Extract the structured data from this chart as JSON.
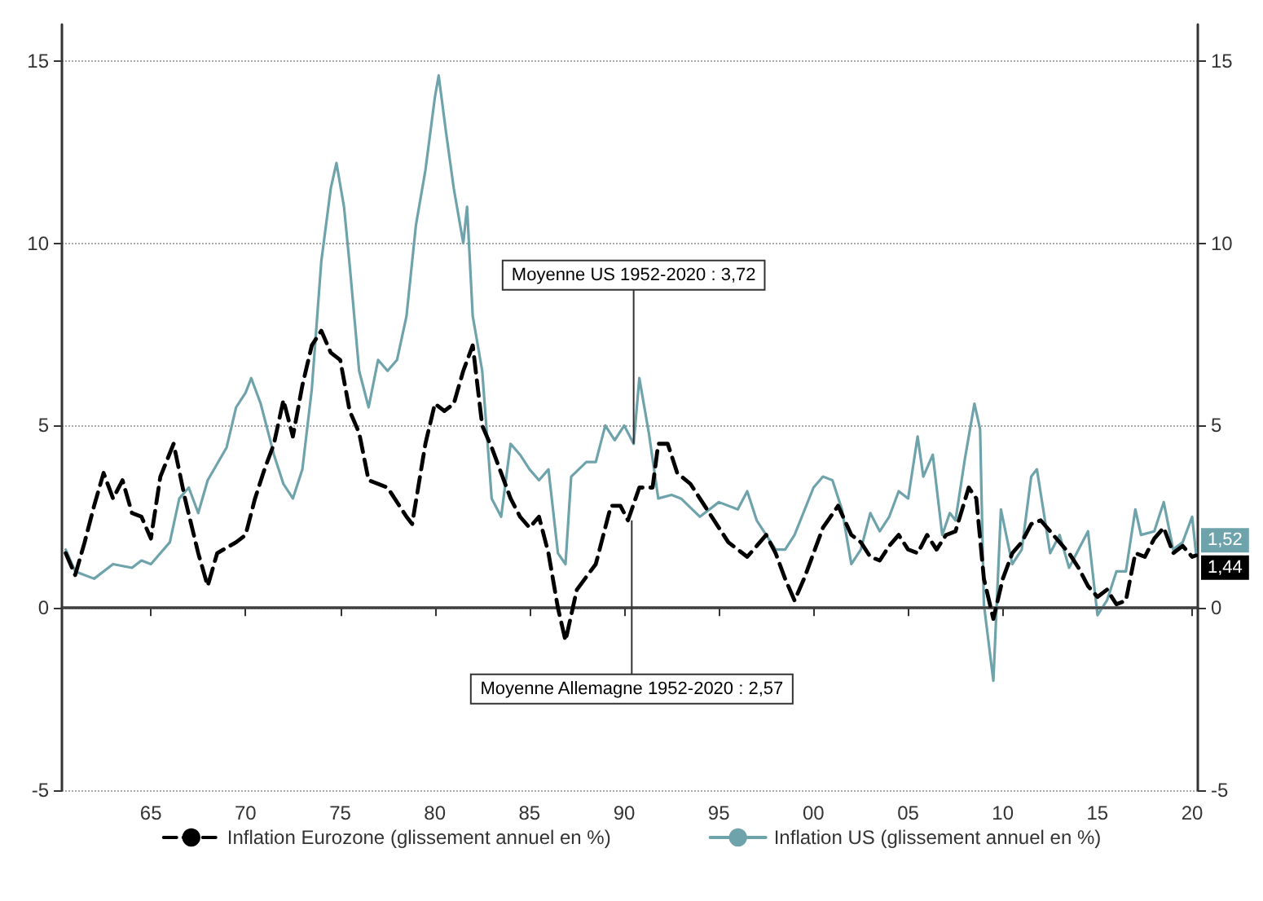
{
  "chart_data": {
    "type": "line",
    "xlim": [
      1960.3,
      2020.3
    ],
    "xticks": [
      {
        "value": 1965,
        "label": "65"
      },
      {
        "value": 1970,
        "label": "70"
      },
      {
        "value": 1975,
        "label": "75"
      },
      {
        "value": 1980,
        "label": "80"
      },
      {
        "value": 1985,
        "label": "85"
      },
      {
        "value": 1990,
        "label": "90"
      },
      {
        "value": 1995,
        "label": "95"
      },
      {
        "value": 2000,
        "label": "00"
      },
      {
        "value": 2005,
        "label": "05"
      },
      {
        "value": 2010,
        "label": "10"
      },
      {
        "value": 2015,
        "label": "15"
      },
      {
        "value": 2020,
        "label": "20"
      }
    ],
    "ylim": [
      -5,
      16
    ],
    "yticks": [
      -5,
      0,
      5,
      10,
      15
    ],
    "y2lim": [
      -5,
      16
    ],
    "y2ticks": [
      -5,
      0,
      5,
      10,
      15
    ],
    "grid": "y",
    "legend": "bottom",
    "ref_lines": [
      {
        "axis": "y",
        "value": 0,
        "color": "#404040"
      }
    ],
    "annotations": [
      {
        "text": "Moyenne US 1952-2020 : 3,72",
        "x": 1990.5,
        "y": 4.5
      },
      {
        "text": "Moyenne Allemagne 1952-2020 : 2,57",
        "x": 1990.4,
        "y": 2.4
      },
      {
        "text": "1,52",
        "x": 2020.2,
        "y": 1.52
      },
      {
        "text": "1,44",
        "x": 2020.2,
        "y": 1.44
      }
    ],
    "series": [
      {
        "name": "Inflation Eurozone (glissement annuel en %)",
        "color": "#000000",
        "line_style": "dashed",
        "x": [
          1960.5,
          1961,
          1961.5,
          1962,
          1962.5,
          1963,
          1963.5,
          1964,
          1964.5,
          1965,
          1965.5,
          1966.2,
          1966.8,
          1967.5,
          1968,
          1968.5,
          1969.5,
          1970,
          1970.5,
          1971,
          1971.5,
          1972,
          1972.5,
          1973,
          1973.5,
          1974,
          1974.5,
          1975,
          1975.5,
          1976,
          1976.5,
          1977.5,
          1978.5,
          1978.8,
          1979.5,
          1980,
          1980.5,
          1981,
          1981.5,
          1982,
          1982.5,
          1983,
          1984,
          1984.5,
          1985,
          1985.5,
          1986,
          1986.5,
          1986.9,
          1987.5,
          1988.5,
          1989.3,
          1989.8,
          1990.2,
          1990.8,
          1991.5,
          1991.8,
          1992.3,
          1992.8,
          1993.5,
          1994.5,
          1995.5,
          1996.5,
          1997,
          1997.5,
          1998,
          1998.5,
          1999,
          1999.5,
          2000,
          2000.5,
          2001.3,
          2002,
          2002.5,
          2003,
          2003.5,
          2004,
          2004.5,
          2005,
          2005.5,
          2006,
          2006.5,
          2007,
          2007.5,
          2008.2,
          2008.6,
          2009,
          2009.5,
          2010,
          2010.5,
          2011,
          2011.5,
          2012,
          2012.5,
          2013,
          2013.5,
          2014,
          2014.5,
          2015,
          2015.5,
          2016,
          2016.5,
          2017,
          2017.5,
          2018,
          2018.5,
          2019,
          2019.5,
          2020,
          2020.2
        ],
        "values": [
          1.5,
          0.9,
          1.8,
          2.8,
          3.7,
          3.0,
          3.5,
          2.6,
          2.5,
          1.9,
          3.6,
          4.5,
          3.0,
          1.5,
          0.6,
          1.5,
          1.8,
          2.0,
          3.0,
          3.8,
          4.5,
          5.7,
          4.7,
          6.1,
          7.2,
          7.6,
          7.0,
          6.8,
          5.4,
          4.8,
          3.5,
          3.3,
          2.5,
          2.3,
          4.5,
          5.6,
          5.4,
          5.6,
          6.5,
          7.2,
          5.0,
          4.4,
          3.0,
          2.5,
          2.2,
          2.5,
          1.5,
          0.0,
          -0.9,
          0.5,
          1.2,
          2.8,
          2.8,
          2.4,
          3.3,
          3.3,
          4.5,
          4.5,
          3.7,
          3.4,
          2.6,
          1.8,
          1.4,
          1.7,
          2.0,
          1.5,
          0.8,
          0.2,
          0.8,
          1.5,
          2.2,
          2.8,
          2.0,
          1.8,
          1.4,
          1.3,
          1.7,
          2.0,
          1.6,
          1.5,
          2.0,
          1.6,
          2.0,
          2.1,
          3.3,
          3.0,
          0.8,
          -0.3,
          0.8,
          1.5,
          1.8,
          2.3,
          2.4,
          2.1,
          1.8,
          1.5,
          1.1,
          0.6,
          0.3,
          0.5,
          0.1,
          0.2,
          1.5,
          1.4,
          1.9,
          2.2,
          1.5,
          1.7,
          1.4,
          1.44
        ]
      },
      {
        "name": "Inflation US (glissement annuel en %)",
        "color": "#6fa3ab",
        "x": [
          1960.5,
          1961,
          1962,
          1963,
          1964,
          1964.5,
          1965,
          1966,
          1966.5,
          1967,
          1967.5,
          1968,
          1969,
          1969.5,
          1970,
          1970.3,
          1970.8,
          1971.5,
          1972,
          1972.5,
          1973,
          1973.5,
          1974,
          1974.5,
          1974.8,
          1975.2,
          1975.5,
          1976,
          1976.5,
          1977,
          1977.5,
          1978,
          1978.5,
          1979,
          1979.5,
          1980,
          1980.2,
          1980.6,
          1981,
          1981.5,
          1981.7,
          1982,
          1982.5,
          1983,
          1983.5,
          1984,
          1984.5,
          1985,
          1985.5,
          1986,
          1986.5,
          1986.9,
          1987.2,
          1988,
          1988.5,
          1989,
          1989.5,
          1990,
          1990.5,
          1990.8,
          1991.3,
          1991.8,
          1992.5,
          1993,
          1994,
          1995,
          1996,
          1996.5,
          1997,
          1998,
          1998.5,
          1999,
          2000,
          2000.5,
          2001,
          2001.5,
          2002,
          2002.5,
          2003,
          2003.5,
          2004,
          2004.5,
          2005,
          2005.5,
          2005.8,
          2006.3,
          2006.8,
          2007.2,
          2007.5,
          2008,
          2008.5,
          2008.8,
          2009,
          2009.5,
          2009.9,
          2010.5,
          2011,
          2011.5,
          2011.8,
          2012.5,
          2013,
          2013.5,
          2014,
          2014.5,
          2015,
          2015.5,
          2016,
          2016.5,
          2017,
          2017.3,
          2018,
          2018.5,
          2019,
          2019.5,
          2020,
          2020.2
        ],
        "values": [
          1.6,
          1.0,
          0.8,
          1.2,
          1.1,
          1.3,
          1.2,
          1.8,
          3.0,
          3.3,
          2.6,
          3.5,
          4.4,
          5.5,
          5.9,
          6.3,
          5.6,
          4.2,
          3.4,
          3.0,
          3.8,
          6.0,
          9.5,
          11.5,
          12.2,
          11.0,
          9.4,
          6.5,
          5.5,
          6.8,
          6.5,
          6.8,
          8.0,
          10.5,
          12.0,
          14.0,
          14.6,
          13.0,
          11.5,
          10.0,
          11.0,
          8.0,
          6.5,
          3.0,
          2.5,
          4.5,
          4.2,
          3.8,
          3.5,
          3.8,
          1.5,
          1.2,
          3.6,
          4.0,
          4.0,
          5.0,
          4.6,
          5.0,
          4.5,
          6.3,
          4.8,
          3.0,
          3.1,
          3.0,
          2.5,
          2.9,
          2.7,
          3.2,
          2.4,
          1.6,
          1.6,
          2.0,
          3.3,
          3.6,
          3.5,
          2.7,
          1.2,
          1.6,
          2.6,
          2.1,
          2.5,
          3.2,
          3.0,
          4.7,
          3.6,
          4.2,
          2.0,
          2.6,
          2.4,
          4.1,
          5.6,
          4.9,
          0.1,
          -2.0,
          2.7,
          1.2,
          1.6,
          3.6,
          3.8,
          1.5,
          2.0,
          1.1,
          1.6,
          2.1,
          -0.2,
          0.2,
          1.0,
          1.0,
          2.7,
          2.0,
          2.1,
          2.9,
          1.6,
          1.8,
          2.5,
          1.52
        ]
      }
    ]
  }
}
